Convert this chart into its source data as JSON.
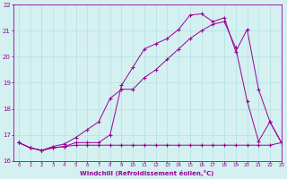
{
  "line1_x": [
    0,
    1,
    2,
    3,
    4,
    5,
    6,
    7,
    8,
    9,
    10,
    11,
    12,
    13,
    14,
    15,
    16,
    17,
    18,
    19,
    20,
    21,
    22,
    23
  ],
  "line1_y": [
    16.7,
    16.5,
    16.4,
    16.5,
    16.55,
    16.6,
    16.6,
    16.6,
    16.6,
    16.6,
    16.6,
    16.6,
    16.6,
    16.6,
    16.6,
    16.6,
    16.6,
    16.6,
    16.6,
    16.6,
    16.6,
    16.6,
    16.6,
    16.7
  ],
  "line2_x": [
    0,
    1,
    2,
    3,
    4,
    5,
    6,
    7,
    8,
    9,
    10,
    11,
    12,
    13,
    14,
    15,
    16,
    17,
    18,
    19,
    20,
    21,
    22,
    23
  ],
  "line2_y": [
    16.7,
    16.5,
    16.4,
    16.5,
    16.55,
    16.7,
    16.7,
    16.7,
    17.0,
    18.9,
    19.6,
    20.3,
    20.5,
    20.7,
    21.05,
    21.6,
    21.65,
    21.35,
    21.5,
    20.2,
    21.05,
    18.75,
    17.5,
    16.7
  ],
  "line3_x": [
    0,
    1,
    2,
    3,
    4,
    5,
    6,
    7,
    8,
    9,
    10,
    11,
    12,
    13,
    14,
    15,
    16,
    17,
    18,
    19,
    20,
    21,
    22,
    23
  ],
  "line3_y": [
    16.7,
    16.5,
    16.4,
    16.55,
    16.65,
    16.9,
    17.2,
    17.5,
    18.4,
    18.75,
    18.75,
    19.2,
    19.5,
    19.9,
    20.3,
    20.7,
    21.0,
    21.25,
    21.35,
    20.35,
    18.3,
    16.75,
    17.5,
    16.7
  ],
  "color": "#990099",
  "bg_color": "#d4f0f0",
  "grid_color": "#aadddd",
  "xlabel": "Windchill (Refroidissement éolien,°C)",
  "xlim": [
    -0.5,
    23
  ],
  "ylim": [
    16,
    22
  ],
  "yticks": [
    16,
    17,
    18,
    19,
    20,
    21,
    22
  ],
  "xticks": [
    0,
    1,
    2,
    3,
    4,
    5,
    6,
    7,
    8,
    9,
    10,
    11,
    12,
    13,
    14,
    15,
    16,
    17,
    18,
    19,
    20,
    21,
    22,
    23
  ]
}
